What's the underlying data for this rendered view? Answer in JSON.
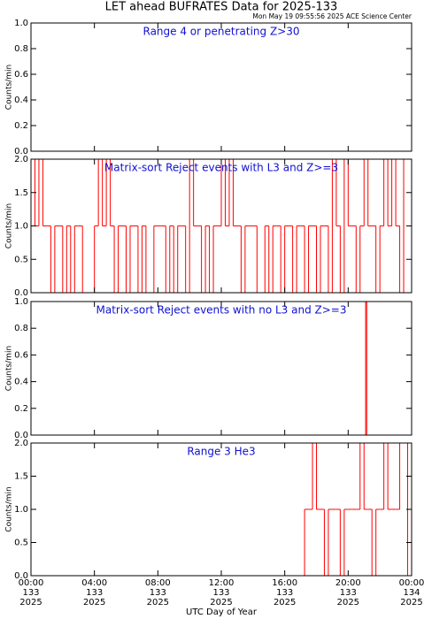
{
  "chart_data": {
    "type": "line",
    "title": "LET ahead BUFRATES Data for 2025-133",
    "subtitle": "Mon May 19 09:55:56 2025 ACE Science Center",
    "xlabel": "UTC Day of Year",
    "color": "#ff0000",
    "xlim": [
      0,
      24
    ],
    "xticks": [
      {
        "value": 0,
        "label": "00:00"
      },
      {
        "value": 4,
        "label": "04:00"
      },
      {
        "value": 8,
        "label": "08:00"
      },
      {
        "value": 12,
        "label": "12:00"
      },
      {
        "value": 16,
        "label": "16:00"
      },
      {
        "value": 20,
        "label": "20:00"
      },
      {
        "value": 24,
        "label": "00:00"
      }
    ],
    "xtick_days": [
      "133",
      "133",
      "133",
      "133",
      "133",
      "133",
      "134"
    ],
    "xtick_years": [
      "2025",
      "2025",
      "2025",
      "2025",
      "2025",
      "2025",
      "2025"
    ],
    "panels": [
      {
        "title": "Range 4 or  penetrating Z>30",
        "ylabel": "Counts/min",
        "ylim": [
          0,
          1
        ],
        "yticks": [
          {
            "value": 0,
            "label": "0.0"
          },
          {
            "value": 0.2,
            "label": "0.2"
          },
          {
            "value": 0.4,
            "label": "0.4"
          },
          {
            "value": 0.6,
            "label": "0.6"
          },
          {
            "value": 0.8,
            "label": "0.8"
          },
          {
            "value": 1,
            "label": "1.0"
          }
        ],
        "x": [
          0,
          24
        ],
        "values": [
          0,
          0
        ]
      },
      {
        "title": "Matrix-sort Reject events with L3 and Z>=3",
        "ylabel": "Counts/min",
        "ylim": [
          0,
          2
        ],
        "yticks": [
          {
            "value": 0,
            "label": "0.0"
          },
          {
            "value": 0.5,
            "label": "0.5"
          },
          {
            "value": 1,
            "label": "1.0"
          },
          {
            "value": 1.5,
            "label": "1.5"
          },
          {
            "value": 2,
            "label": "2.0"
          }
        ],
        "x": [
          0,
          0.25,
          0.5,
          0.75,
          1,
          1.25,
          1.5,
          1.75,
          2,
          2.25,
          2.5,
          2.75,
          3,
          3.25,
          3.5,
          3.75,
          4,
          4.25,
          4.5,
          4.75,
          5,
          5.25,
          5.5,
          5.75,
          6,
          6.25,
          6.5,
          6.75,
          7,
          7.25,
          7.5,
          7.75,
          8,
          8.25,
          8.5,
          8.75,
          9,
          9.25,
          9.5,
          9.75,
          10,
          10.25,
          10.5,
          10.75,
          11,
          11.25,
          11.5,
          11.75,
          12,
          12.25,
          12.5,
          12.75,
          13,
          13.25,
          13.5,
          13.75,
          14,
          14.25,
          14.5,
          14.75,
          15,
          15.25,
          15.5,
          15.75,
          16,
          16.25,
          16.5,
          16.75,
          17,
          17.25,
          17.5,
          17.75,
          18,
          18.25,
          18.5,
          18.75,
          19,
          19.25,
          19.5,
          19.75,
          20,
          20.25,
          20.5,
          20.75,
          21,
          21.25,
          21.5,
          21.75,
          22,
          22.25,
          22.5,
          22.75,
          23,
          23.25,
          23.5,
          23.75,
          24
        ],
        "values": [
          2,
          1,
          2,
          1,
          1,
          0,
          1,
          1,
          0,
          1,
          0,
          1,
          1,
          0,
          0,
          0,
          1,
          2,
          1,
          2,
          1,
          0,
          1,
          1,
          0,
          1,
          1,
          0,
          1,
          0,
          0,
          1,
          1,
          1,
          0,
          1,
          0,
          1,
          1,
          0,
          2,
          1,
          1,
          0,
          1,
          0,
          1,
          1,
          2,
          1,
          2,
          1,
          1,
          0,
          1,
          1,
          1,
          0,
          0,
          1,
          0,
          1,
          1,
          0,
          1,
          1,
          0,
          1,
          1,
          0,
          1,
          1,
          0,
          1,
          1,
          0,
          2,
          1,
          0,
          2,
          1,
          1,
          0,
          1,
          2,
          1,
          1,
          0,
          1,
          2,
          1,
          2,
          1,
          0,
          2,
          2,
          1
        ]
      },
      {
        "title": "Matrix-sort Reject events with no L3 and Z>=3",
        "ylabel": "Counts/min",
        "ylim": [
          0,
          1
        ],
        "yticks": [
          {
            "value": 0,
            "label": "0.0"
          },
          {
            "value": 0.2,
            "label": "0.2"
          },
          {
            "value": 0.4,
            "label": "0.4"
          },
          {
            "value": 0.6,
            "label": "0.6"
          },
          {
            "value": 0.8,
            "label": "0.8"
          },
          {
            "value": 1,
            "label": "1.0"
          }
        ],
        "x": [
          0,
          21.1,
          21.17,
          24
        ],
        "values": [
          0,
          1,
          0,
          0
        ]
      },
      {
        "title": "Range 3 He3",
        "ylabel": "Counts/min",
        "ylim": [
          0,
          2
        ],
        "yticks": [
          {
            "value": 0,
            "label": "0.0"
          },
          {
            "value": 0.5,
            "label": "0.5"
          },
          {
            "value": 1,
            "label": "1.0"
          },
          {
            "value": 1.5,
            "label": "1.5"
          },
          {
            "value": 2,
            "label": "2.0"
          }
        ],
        "x": [
          0,
          17.25,
          17.5,
          17.75,
          18,
          18.25,
          18.5,
          18.75,
          19,
          19.25,
          19.5,
          19.75,
          20,
          20.25,
          20.5,
          20.75,
          21,
          21.25,
          21.5,
          21.75,
          22,
          22.25,
          22.5,
          22.75,
          23,
          23.25,
          23.5,
          23.75,
          24
        ],
        "values": [
          0,
          1,
          1,
          2,
          1,
          1,
          0,
          1,
          1,
          1,
          0,
          1,
          1,
          1,
          1,
          2,
          1,
          1,
          0,
          1,
          1,
          2,
          1,
          1,
          1,
          2,
          2,
          0,
          1
        ]
      }
    ]
  }
}
